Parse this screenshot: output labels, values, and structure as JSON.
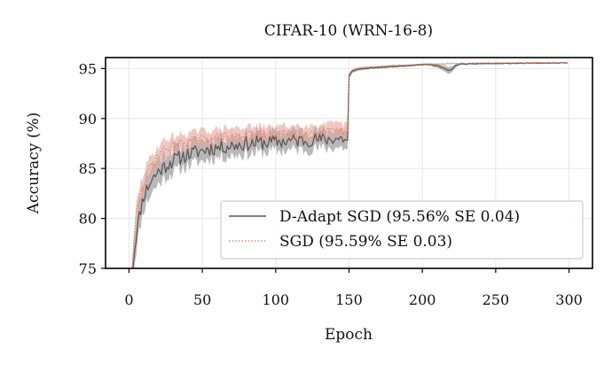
{
  "chart_data": {
    "type": "line",
    "title": "CIFAR-10 (WRN-16-8)",
    "xlabel": "Epoch",
    "ylabel": "Accuracy (%)",
    "xlim": [
      -16,
      316
    ],
    "ylim": [
      75,
      96.1
    ],
    "xticks": [
      0,
      50,
      100,
      150,
      200,
      250,
      300
    ],
    "yticks": [
      75,
      80,
      85,
      90,
      95
    ],
    "grid": true,
    "legend_position": "lower-right",
    "series": [
      {
        "name": "D-Adapt SGD (95.56% SE 0.04)",
        "color": "#555555",
        "band_color": "#a0a0a0",
        "linestyle": "solid",
        "x": [
          2,
          5,
          8,
          10,
          15,
          20,
          25,
          30,
          35,
          40,
          45,
          50,
          55,
          60,
          65,
          70,
          75,
          80,
          85,
          90,
          95,
          100,
          105,
          110,
          115,
          120,
          125,
          130,
          135,
          140,
          145,
          149,
          150,
          152,
          155,
          160,
          170,
          180,
          190,
          200,
          205,
          210,
          215,
          218,
          220,
          222,
          225,
          230,
          240,
          250,
          260,
          270,
          280,
          290,
          299
        ],
        "y": [
          74.5,
          78.5,
          81.0,
          82.3,
          83.8,
          84.7,
          85.3,
          85.8,
          86.1,
          86.4,
          86.6,
          86.8,
          87.0,
          87.1,
          87.2,
          87.3,
          87.4,
          87.5,
          87.5,
          87.6,
          87.6,
          87.7,
          87.7,
          87.8,
          87.8,
          87.8,
          87.9,
          87.9,
          87.9,
          88.0,
          88.0,
          87.8,
          94.2,
          94.7,
          94.9,
          95.0,
          95.1,
          95.2,
          95.3,
          95.4,
          95.4,
          95.3,
          95.0,
          94.8,
          94.9,
          95.2,
          95.45,
          95.45,
          95.5,
          95.5,
          95.52,
          95.53,
          95.54,
          95.55,
          95.56
        ],
        "band_halfwidth": [
          0.8,
          1.6,
          1.5,
          1.4,
          1.3,
          1.25,
          1.2,
          1.2,
          1.15,
          1.1,
          1.1,
          1.05,
          1.05,
          1.0,
          1.0,
          1.0,
          1.0,
          1.0,
          1.0,
          1.0,
          0.95,
          0.95,
          0.95,
          0.95,
          0.95,
          0.95,
          0.9,
          0.9,
          0.9,
          0.9,
          0.9,
          0.9,
          0.25,
          0.18,
          0.15,
          0.12,
          0.1,
          0.1,
          0.1,
          0.1,
          0.12,
          0.2,
          0.3,
          0.35,
          0.3,
          0.2,
          0.1,
          0.08,
          0.08,
          0.07,
          0.07,
          0.06,
          0.06,
          0.06,
          0.06
        ],
        "noise_amp": 0.75,
        "noise_seed": 11
      },
      {
        "name": "SGD (95.59% SE 0.03)",
        "color": "#e07b62",
        "band_color": "#e3a496",
        "linestyle": "dotted",
        "x": [
          2,
          5,
          8,
          10,
          15,
          20,
          25,
          30,
          35,
          40,
          45,
          50,
          55,
          60,
          65,
          70,
          75,
          80,
          85,
          90,
          95,
          100,
          105,
          110,
          115,
          120,
          125,
          130,
          135,
          140,
          145,
          149,
          150,
          152,
          155,
          160,
          170,
          180,
          190,
          200,
          210,
          220,
          230,
          240,
          250,
          260,
          270,
          280,
          290,
          299
        ],
        "y": [
          75.0,
          80.5,
          82.6,
          83.6,
          85.3,
          86.4,
          87.0,
          87.3,
          87.5,
          87.7,
          87.8,
          87.9,
          88.0,
          88.1,
          88.2,
          88.2,
          88.3,
          88.3,
          88.4,
          88.4,
          88.4,
          88.5,
          88.5,
          88.5,
          88.6,
          88.6,
          88.6,
          88.6,
          88.7,
          88.7,
          88.7,
          88.7,
          94.4,
          94.8,
          95.0,
          95.1,
          95.2,
          95.3,
          95.35,
          95.4,
          95.45,
          95.5,
          95.52,
          95.54,
          95.55,
          95.56,
          95.57,
          95.58,
          95.59,
          95.59
        ],
        "band_halfwidth": [
          0.6,
          1.0,
          1.0,
          1.0,
          0.95,
          0.9,
          0.9,
          0.9,
          0.85,
          0.85,
          0.85,
          0.85,
          0.8,
          0.8,
          0.8,
          0.8,
          0.8,
          0.8,
          0.8,
          0.8,
          0.75,
          0.75,
          0.75,
          0.75,
          0.75,
          0.75,
          0.75,
          0.75,
          0.75,
          0.75,
          0.75,
          0.75,
          0.15,
          0.12,
          0.1,
          0.1,
          0.08,
          0.08,
          0.08,
          0.07,
          0.07,
          0.07,
          0.06,
          0.06,
          0.06,
          0.05,
          0.05,
          0.05,
          0.05,
          0.05
        ],
        "noise_amp": 0.55,
        "noise_seed": 29
      }
    ]
  }
}
